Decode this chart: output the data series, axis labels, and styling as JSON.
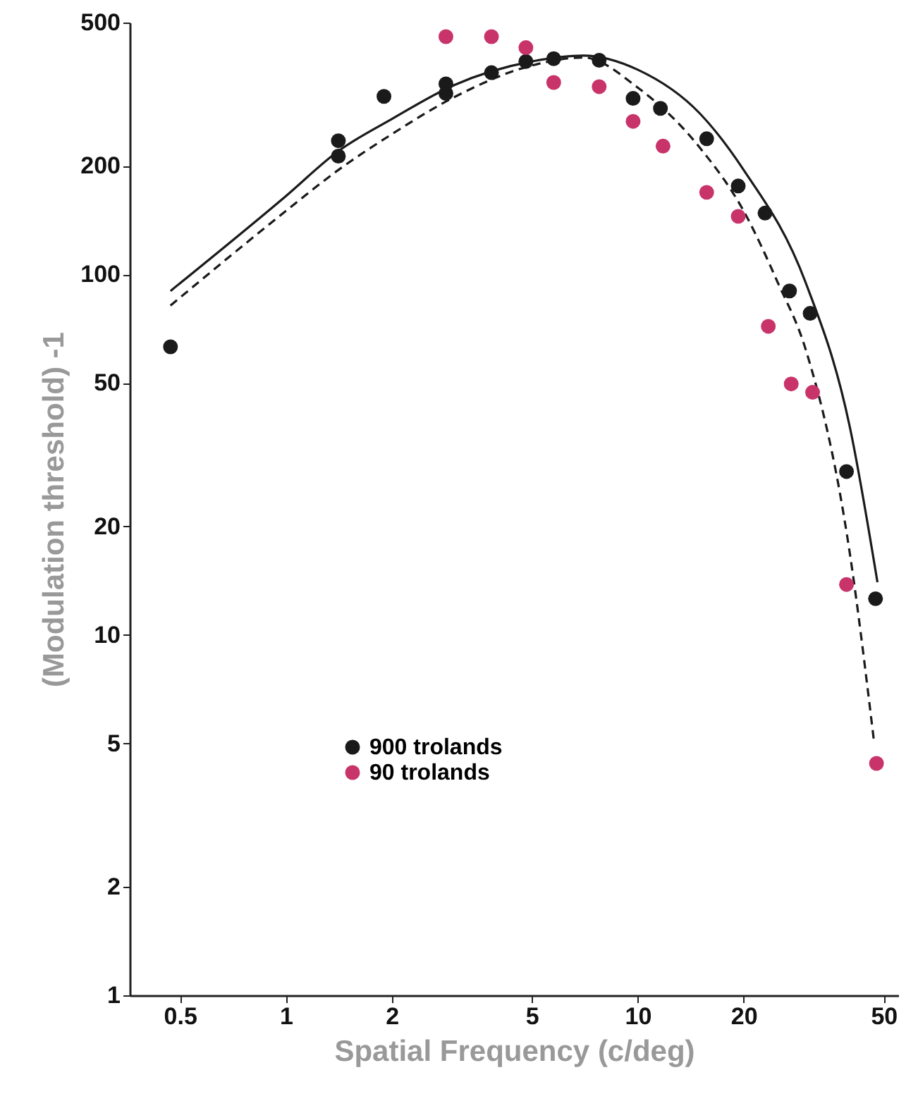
{
  "chart_data": {
    "type": "scatter",
    "xlabel": "Spatial Frequency (c/deg)",
    "ylabel": "(Modulation threshold) -1",
    "log": "xy",
    "xlim": [
      0.36,
      55
    ],
    "ylim": [
      1,
      500
    ],
    "xticks": [
      0.5,
      1,
      2,
      5,
      10,
      20,
      50
    ],
    "yticks": [
      1,
      2,
      5,
      10,
      20,
      50,
      100,
      200,
      500
    ],
    "grid": false,
    "legend": "bottom left",
    "marker": "circle",
    "series": [
      {
        "name": "900 trolands",
        "color": "#1a1a1a",
        "x": [
          0.47,
          1.41,
          1.41,
          1.9,
          2.85,
          2.85,
          3.84,
          4.81,
          5.77,
          7.77,
          9.7,
          11.6,
          15.7,
          19.3,
          23.0,
          27.0,
          30.9,
          39.2,
          47.4
        ],
        "values": [
          63,
          235,
          213,
          312,
          338,
          318,
          363,
          390,
          397,
          393,
          308,
          289,
          238,
          176,
          148,
          90,
          78,
          28.4,
          12.6
        ]
      },
      {
        "name": "90 trolands",
        "color": "#c8336a",
        "x": [
          2.85,
          3.84,
          4.81,
          5.77,
          7.77,
          9.7,
          11.8,
          15.7,
          19.3,
          23.5,
          27.3,
          31.4,
          39.2,
          47.7
        ],
        "values": [
          457,
          457,
          426,
          341,
          332,
          266,
          227,
          169,
          145,
          71.8,
          49.7,
          47.1,
          13.8,
          4.4
        ]
      },
      {
        "color": "#1a1a1a",
        "type": "line",
        "marker": "none",
        "line_style": "solid",
        "x": [
          0.47,
          1,
          1.41,
          2,
          3,
          5,
          7,
          10,
          15,
          20,
          30,
          40,
          48
        ],
        "values": [
          90,
          165,
          220,
          270,
          335,
          390,
          405,
          370,
          280,
          195,
          95,
          38,
          14
        ]
      },
      {
        "color": "#1a1a1a",
        "type": "line",
        "marker": "none",
        "line_style": "dashed",
        "x": [
          0.47,
          1,
          1.41,
          2,
          3,
          5,
          7,
          10,
          15,
          20,
          25,
          30,
          40,
          47
        ],
        "values": [
          82,
          150,
          195,
          245,
          310,
          380,
          400,
          330,
          225,
          150,
          95,
          62,
          17,
          5
        ]
      }
    ]
  }
}
